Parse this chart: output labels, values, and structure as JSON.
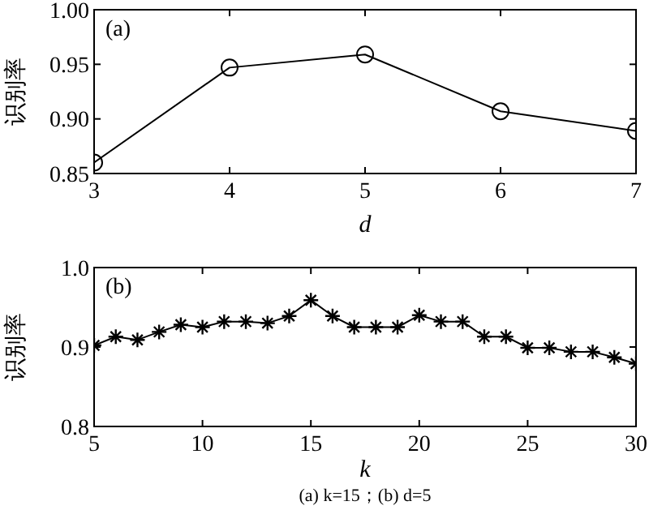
{
  "chart_data": [
    {
      "type": "line",
      "ylabel": "识别率",
      "xlabel": "d",
      "annotations": [
        "(a)"
      ],
      "x": [
        3,
        4,
        5,
        6,
        7
      ],
      "xlim": [
        3,
        7
      ],
      "xticks": [
        3,
        4,
        5,
        6,
        7
      ],
      "ylim": [
        0.85,
        1
      ],
      "yticks": [
        {
          "value": 0.85,
          "label": "0.85"
        },
        {
          "value": 0.9,
          "label": "0.90"
        },
        {
          "value": 0.95,
          "label": "0.95"
        },
        {
          "value": 1,
          "label": "1.00"
        }
      ],
      "marker": "circle",
      "series": [
        {
          "color": "#000000",
          "values": [
            0.86,
            0.947,
            0.959,
            0.907,
            0.889
          ]
        }
      ]
    },
    {
      "type": "line",
      "ylabel": "识别率",
      "xlabel": "k",
      "annotations": [
        "(b)",
        "(a) k=15；(b) d=5"
      ],
      "x": [
        5,
        6,
        7,
        8,
        9,
        10,
        11,
        12,
        13,
        14,
        15,
        16,
        17,
        18,
        19,
        20,
        21,
        22,
        23,
        24,
        25,
        26,
        27,
        28,
        29,
        30
      ],
      "xlim": [
        5,
        30
      ],
      "xticks": [
        5,
        10,
        15,
        20,
        25,
        30
      ],
      "ylim": [
        0.8,
        1
      ],
      "yticks": [
        {
          "value": 0.8,
          "label": "0.8"
        },
        {
          "value": 0.9,
          "label": "0.9"
        },
        {
          "value": 1,
          "label": "1.0"
        }
      ],
      "marker": "cross",
      "series": [
        {
          "color": "#000000",
          "values": [
            0.902,
            0.913,
            0.909,
            0.919,
            0.928,
            0.925,
            0.932,
            0.932,
            0.93,
            0.939,
            0.959,
            0.939,
            0.925,
            0.925,
            0.925,
            0.94,
            0.932,
            0.932,
            0.913,
            0.913,
            0.899,
            0.899,
            0.894,
            0.894,
            0.887,
            0.879
          ]
        }
      ]
    }
  ]
}
